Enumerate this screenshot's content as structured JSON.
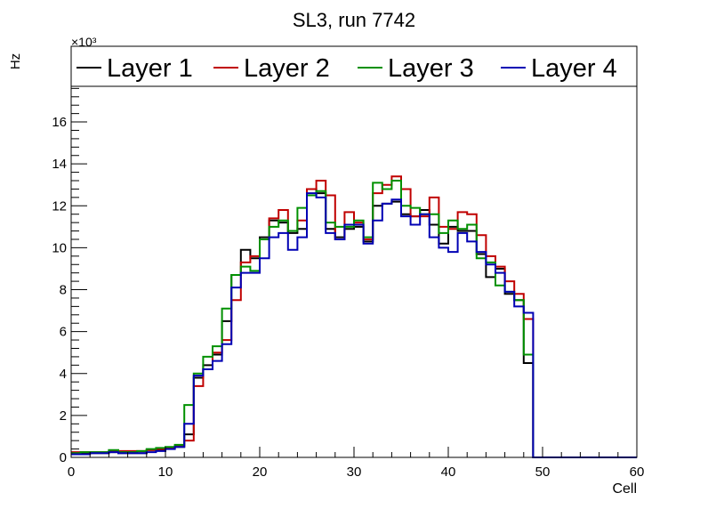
{
  "chart_data": {
    "type": "line",
    "title": "SL3, run 7742",
    "xlabel": "Cell",
    "ylabel": "Hz",
    "y_multiplier": "×10³",
    "xlim": [
      0,
      60
    ],
    "ylim": [
      0,
      17.7
    ],
    "x_ticks": [
      0,
      10,
      20,
      30,
      40,
      50,
      60
    ],
    "y_ticks": [
      0,
      2,
      4,
      6,
      8,
      10,
      12,
      14,
      16
    ],
    "x_tick_labels": [
      "0",
      "10",
      "20",
      "30",
      "40",
      "50",
      "60"
    ],
    "y_tick_labels": [
      "0",
      "2",
      "4",
      "6",
      "8",
      "10",
      "12",
      "14",
      "16"
    ],
    "grid": false,
    "legend": "top",
    "bin_width": 1,
    "series": [
      {
        "name": "Layer 1",
        "color": "#000000",
        "values": [
          0.15,
          0.2,
          0.2,
          0.2,
          0.25,
          0.2,
          0.2,
          0.2,
          0.35,
          0.35,
          0.45,
          0.5,
          1.1,
          3.8,
          4.4,
          4.9,
          6.5,
          8.7,
          9.9,
          9.5,
          10.5,
          11.3,
          11.2,
          10.7,
          10.9,
          12.8,
          12.6,
          10.9,
          10.5,
          10.9,
          11.0,
          10.3,
          12.0,
          12.1,
          12.2,
          11.6,
          11.5,
          11.8,
          11.1,
          10.2,
          11.0,
          10.8,
          10.8,
          9.7,
          8.6,
          9.0,
          7.8,
          7.5,
          4.5,
          0,
          0,
          0,
          0,
          0,
          0,
          0,
          0,
          0,
          0,
          0
        ]
      },
      {
        "name": "Layer 2",
        "color": "#c00000",
        "values": [
          0.25,
          0.25,
          0.25,
          0.25,
          0.3,
          0.3,
          0.3,
          0.3,
          0.35,
          0.4,
          0.45,
          0.55,
          0.8,
          3.4,
          4.2,
          5.0,
          5.6,
          7.5,
          9.3,
          9.6,
          10.4,
          11.4,
          11.8,
          10.8,
          11.3,
          12.8,
          13.2,
          12.5,
          10.4,
          11.7,
          11.2,
          10.4,
          12.6,
          13.0,
          13.4,
          12.8,
          11.5,
          11.5,
          12.4,
          11.0,
          10.9,
          11.7,
          11.6,
          10.6,
          9.6,
          9.1,
          8.4,
          7.8,
          6.6,
          0,
          0,
          0,
          0,
          0,
          0,
          0,
          0,
          0,
          0,
          0
        ]
      },
      {
        "name": "Layer 3",
        "color": "#009000",
        "values": [
          0.2,
          0.25,
          0.25,
          0.25,
          0.35,
          0.25,
          0.25,
          0.3,
          0.4,
          0.45,
          0.5,
          0.6,
          2.5,
          4.0,
          4.8,
          5.3,
          7.1,
          8.7,
          9.1,
          8.9,
          10.4,
          11.0,
          11.3,
          10.8,
          11.9,
          12.5,
          12.7,
          11.2,
          11.0,
          11.0,
          11.3,
          10.5,
          13.1,
          12.8,
          13.2,
          12.0,
          11.9,
          11.6,
          11.6,
          10.7,
          11.3,
          10.9,
          11.1,
          9.5,
          9.3,
          8.2,
          7.9,
          7.5,
          4.9,
          0,
          0,
          0,
          0,
          0,
          0,
          0,
          0,
          0,
          0,
          0
        ]
      },
      {
        "name": "Layer 4",
        "color": "#0000b4",
        "values": [
          0.15,
          0.15,
          0.2,
          0.2,
          0.25,
          0.2,
          0.2,
          0.2,
          0.25,
          0.3,
          0.4,
          0.5,
          1.6,
          3.9,
          4.2,
          4.6,
          5.4,
          8.1,
          8.8,
          8.8,
          9.5,
          10.5,
          10.7,
          9.9,
          10.5,
          12.6,
          12.4,
          10.7,
          10.4,
          11.1,
          11.1,
          10.2,
          11.3,
          12.1,
          12.3,
          11.5,
          11.1,
          11.6,
          10.5,
          10.0,
          9.8,
          10.7,
          10.3,
          9.8,
          9.2,
          8.8,
          7.9,
          7.2,
          6.9,
          0,
          0,
          0,
          0,
          0,
          0,
          0,
          0,
          0,
          0,
          0
        ]
      }
    ]
  }
}
